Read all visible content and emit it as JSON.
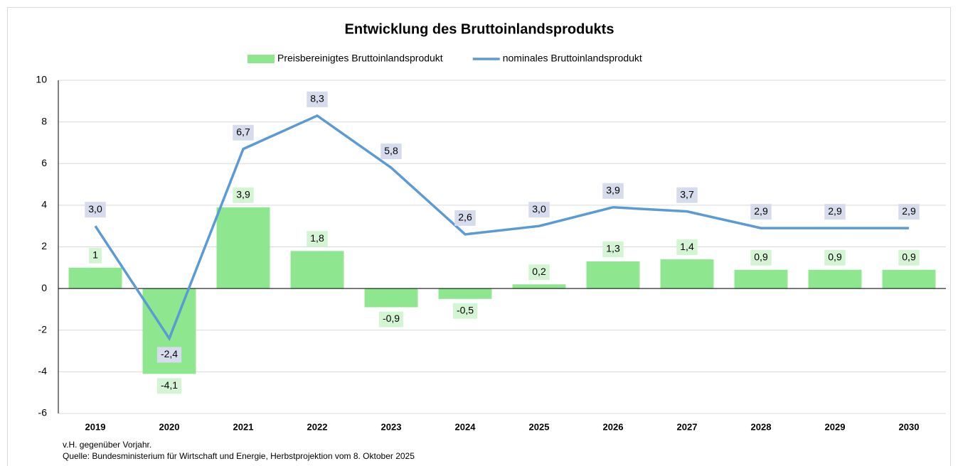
{
  "chart_data": {
    "type": "bar",
    "title": "Entwicklung des Bruttoinlandsprodukts",
    "categories": [
      "2019",
      "2020",
      "2021",
      "2022",
      "2023",
      "2024",
      "2025",
      "2026",
      "2027",
      "2028",
      "2029",
      "2030"
    ],
    "series": [
      {
        "name": "Preisbereinigtes Bruttoinlandsprodukt",
        "type": "bar",
        "color": "#8ee68e",
        "label_color": "#d3f5d3",
        "values": [
          1,
          -4.1,
          3.9,
          1.8,
          -0.9,
          -0.5,
          0.2,
          1.3,
          1.4,
          0.9,
          0.9,
          0.9
        ],
        "value_labels": [
          "1",
          "-4,1",
          "3,9",
          "1,8",
          "-0,9",
          "-0,5",
          "0,2",
          "1,3",
          "1,4",
          "0,9",
          "0,9",
          "0,9"
        ]
      },
      {
        "name": "nominales Bruttoinlandsprodukt",
        "type": "line",
        "color": "#5b9bd5",
        "label_color": "#d6dcec",
        "values": [
          3.0,
          -2.4,
          6.7,
          8.3,
          5.8,
          2.6,
          3.0,
          3.9,
          3.7,
          2.9,
          2.9,
          2.9
        ],
        "value_labels": [
          "3,0",
          "-2,4",
          "6,7",
          "8,3",
          "5,8",
          "2,6",
          "3,0",
          "3,9",
          "3,7",
          "2,9",
          "2,9",
          "2,9"
        ]
      }
    ],
    "ylim": [
      -6,
      10
    ],
    "yticks": [
      -6,
      -4,
      -2,
      0,
      2,
      4,
      6,
      8,
      10
    ],
    "grid": true,
    "legend": "top",
    "notes": [
      "v.H. gegenüber Vorjahr.",
      "Quelle: Bundesministerium für Wirtschaft und Energie, Herbstprojektion vom 8. Oktober 2025"
    ]
  }
}
